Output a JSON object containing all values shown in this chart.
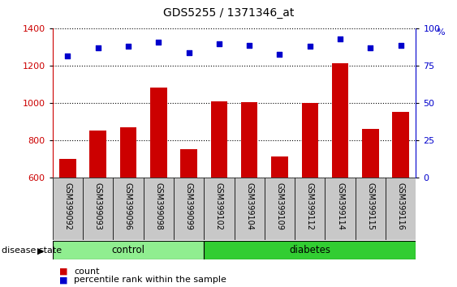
{
  "title": "GDS5255 / 1371346_at",
  "samples": [
    "GSM399092",
    "GSM399093",
    "GSM399096",
    "GSM399098",
    "GSM399099",
    "GSM399102",
    "GSM399104",
    "GSM399109",
    "GSM399112",
    "GSM399114",
    "GSM399115",
    "GSM399116"
  ],
  "counts": [
    700,
    855,
    870,
    1085,
    755,
    1010,
    1005,
    715,
    1000,
    1215,
    865,
    955
  ],
  "percentiles": [
    82,
    87,
    88,
    91,
    84,
    90,
    89,
    83,
    88,
    93,
    87,
    89
  ],
  "n_control": 5,
  "n_diabetes": 7,
  "bar_color": "#cc0000",
  "dot_color": "#0000cc",
  "ylim_left": [
    600,
    1400
  ],
  "ylim_right": [
    0,
    100
  ],
  "yticks_left": [
    600,
    800,
    1000,
    1200,
    1400
  ],
  "yticks_right": [
    0,
    25,
    50,
    75,
    100
  ],
  "control_color": "#90EE90",
  "diabetes_color": "#32CD32",
  "cell_bg_color": "#c8c8c8",
  "group_label": "disease state"
}
